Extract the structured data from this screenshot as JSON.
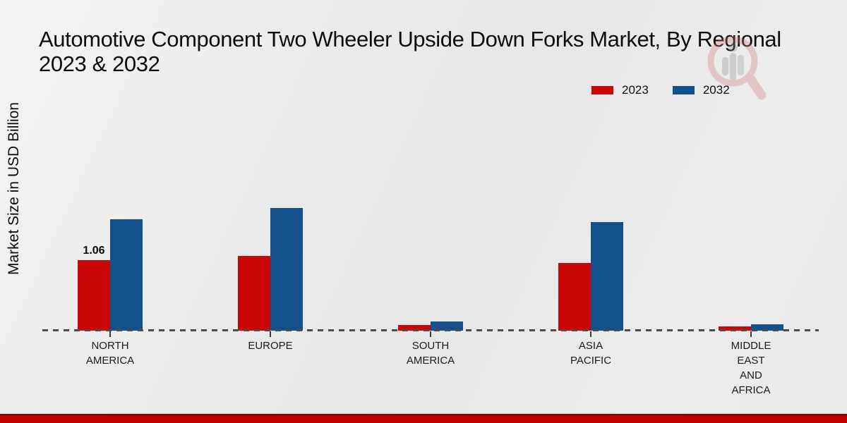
{
  "header": {
    "title_line1": "Automotive Component Two Wheeler Upside Down Forks Market, By Regional",
    "title_line2": "2023 & 2032"
  },
  "colors": {
    "series_2023": "#cb0606",
    "series_2032": "#14508c",
    "bottom_band": "#c10101",
    "bottom_band_edge": "#9a0000",
    "baseline": "#4d4d4d"
  },
  "legend": {
    "position": "top-right",
    "items": [
      {
        "label": "2023",
        "color": "#cb0606"
      },
      {
        "label": "2032",
        "color": "#14508c"
      }
    ]
  },
  "watermark": {
    "icon": "magnifier-bar-chart-logo"
  },
  "chart_data": {
    "type": "bar",
    "title": "Automotive Component Two Wheeler Upside Down Forks Market, By Regional 2023 & 2032",
    "xlabel": "",
    "ylabel": "Market Size in USD Billion",
    "ylim": [
      0,
      2.0
    ],
    "grid": false,
    "legend_position": "top-right",
    "baseline_style": "dashed",
    "categories": [
      "NORTH AMERICA",
      "EUROPE",
      "SOUTH AMERICA",
      "ASIA PACIFIC",
      "MIDDLE EAST AND AFRICA"
    ],
    "category_display_lines": [
      [
        "NORTH",
        "AMERICA"
      ],
      [
        "EUROPE"
      ],
      [
        "SOUTH",
        "AMERICA"
      ],
      [
        "ASIA",
        "PACIFIC"
      ],
      [
        "MIDDLE",
        "EAST",
        "AND",
        "AFRICA"
      ]
    ],
    "series": [
      {
        "name": "2023",
        "color": "#cb0606",
        "values": [
          1.06,
          1.12,
          0.09,
          1.02,
          0.06
        ]
      },
      {
        "name": "2032",
        "color": "#14508c",
        "values": [
          1.67,
          1.84,
          0.14,
          1.63,
          0.1
        ]
      }
    ],
    "data_labels": [
      {
        "series": "2023",
        "category": "NORTH AMERICA",
        "category_index": 0,
        "text": "1.06"
      }
    ]
  }
}
